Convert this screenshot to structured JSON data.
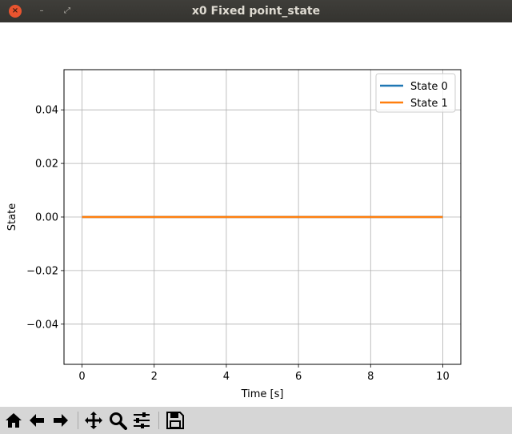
{
  "window": {
    "title": "x0 Fixed point_state",
    "close_symbol": "×",
    "minimize_symbol": "–",
    "maximize_symbol": "⤢"
  },
  "chart_data": {
    "type": "line",
    "title": "",
    "xlabel": "Time [s]",
    "ylabel": "State",
    "xlim": [
      -0.5,
      10.5
    ],
    "ylim": [
      -0.055,
      0.055
    ],
    "xticks": [
      0,
      2,
      4,
      6,
      8,
      10
    ],
    "xtick_labels": [
      "0",
      "2",
      "4",
      "6",
      "8",
      "10"
    ],
    "yticks": [
      -0.04,
      -0.02,
      0.0,
      0.02,
      0.04
    ],
    "ytick_labels": [
      "−0.04",
      "−0.02",
      "0.00",
      "0.02",
      "0.04"
    ],
    "grid": true,
    "legend_position": "top-right",
    "series": [
      {
        "name": "State 0",
        "color": "#1f77b4",
        "x": [
          0,
          10
        ],
        "y": [
          0,
          0
        ]
      },
      {
        "name": "State 1",
        "color": "#ff7f0e",
        "x": [
          0,
          10
        ],
        "y": [
          0,
          0
        ]
      }
    ]
  },
  "toolbar": {
    "buttons": [
      {
        "name": "home-icon"
      },
      {
        "name": "back-arrow-icon"
      },
      {
        "name": "forward-arrow-icon"
      },
      {
        "name": "pan-icon"
      },
      {
        "name": "zoom-icon"
      },
      {
        "name": "configure-subplots-icon"
      },
      {
        "name": "save-icon"
      }
    ]
  }
}
